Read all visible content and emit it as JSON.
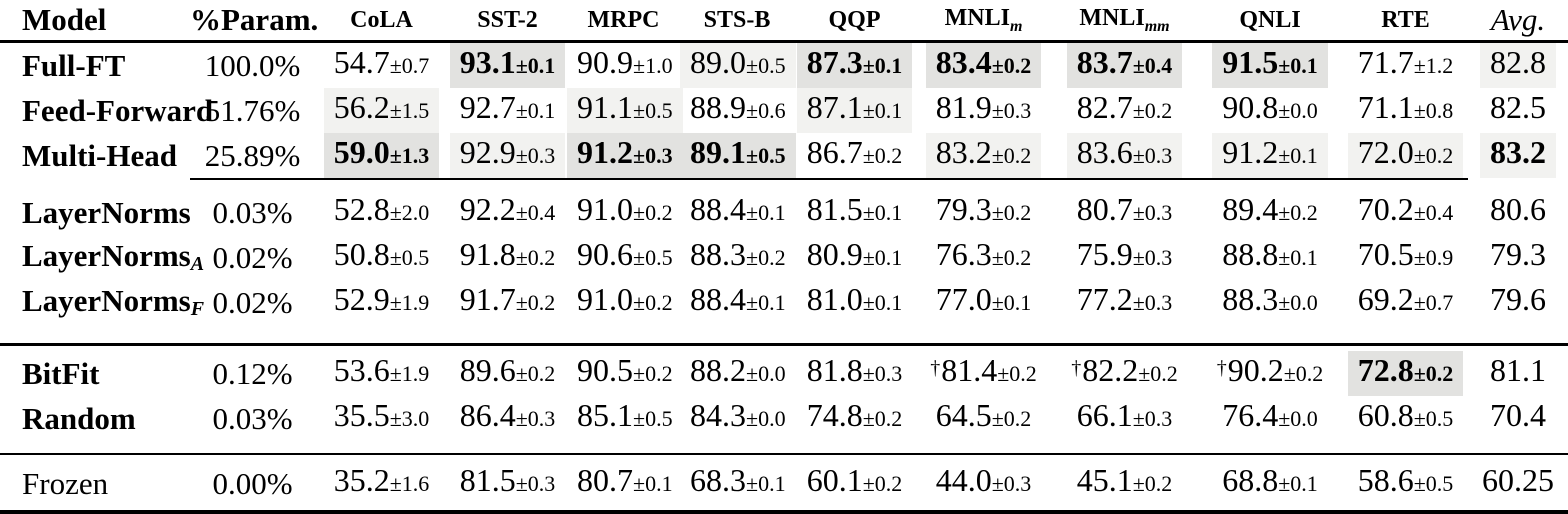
{
  "colors": {
    "background": "#ffffff",
    "text": "#000000",
    "rule": "#000000",
    "highlight_light": "#f2f2f0",
    "highlight_strong": "#e2e2e0"
  },
  "table": {
    "column_keys": [
      "cola",
      "sst2",
      "mrpc",
      "stsb",
      "qqp",
      "mnli_m",
      "mnli_mm",
      "qnli",
      "rte",
      "avg"
    ],
    "header": [
      {
        "label": "Model",
        "kind": "model"
      },
      {
        "label": "%Param.",
        "kind": "param"
      },
      {
        "label": "CoLA",
        "kind": "task"
      },
      {
        "label": "SST-2",
        "kind": "task"
      },
      {
        "label": "MRPC",
        "kind": "task"
      },
      {
        "label": "STS-B",
        "kind": "task"
      },
      {
        "label": "QQP",
        "kind": "task"
      },
      {
        "label": "MNLI",
        "sub": "m",
        "kind": "task"
      },
      {
        "label": "MNLI",
        "sub": "mm",
        "kind": "task"
      },
      {
        "label": "QNLI",
        "kind": "task"
      },
      {
        "label": "RTE",
        "kind": "task"
      },
      {
        "label": "Avg.",
        "kind": "avg"
      }
    ],
    "groups": [
      {
        "rows": [
          {
            "model": "Full-FT",
            "model_bold": true,
            "param": "100.0%",
            "cells": [
              {
                "v": "54.7",
                "sd": "±0.7"
              },
              {
                "v": "93.1",
                "sd": "±0.1",
                "b": 1,
                "hl": 2
              },
              {
                "v": "90.9",
                "sd": "±1.0"
              },
              {
                "v": "89.0",
                "sd": "±0.5",
                "hl": 1
              },
              {
                "v": "87.3",
                "sd": "±0.1",
                "b": 1,
                "hl": 2
              },
              {
                "v": "83.4",
                "sd": "±0.2",
                "b": 1,
                "hl": 2
              },
              {
                "v": "83.7",
                "sd": "±0.4",
                "b": 1,
                "hl": 2
              },
              {
                "v": "91.5",
                "sd": "±0.1",
                "b": 1,
                "hl": 2
              },
              {
                "v": "71.7",
                "sd": "±1.2"
              },
              {
                "v": "82.8",
                "hl": 1
              }
            ]
          },
          {
            "model": "Feed-Forward",
            "model_bold": true,
            "param": "51.76%",
            "cells": [
              {
                "v": "56.2",
                "sd": "±1.5",
                "hl": 1
              },
              {
                "v": "92.7",
                "sd": "±0.1"
              },
              {
                "v": "91.1",
                "sd": "±0.5",
                "hl": 1
              },
              {
                "v": "88.9",
                "sd": "±0.6"
              },
              {
                "v": "87.1",
                "sd": "±0.1",
                "hl": 1
              },
              {
                "v": "81.9",
                "sd": "±0.3"
              },
              {
                "v": "82.7",
                "sd": "±0.2"
              },
              {
                "v": "90.8",
                "sd": "±0.0"
              },
              {
                "v": "71.1",
                "sd": "±0.8"
              },
              {
                "v": "82.5"
              }
            ]
          },
          {
            "model": "Multi-Head",
            "model_bold": true,
            "param": "25.89%",
            "cells": [
              {
                "v": "59.0",
                "sd": "±1.3",
                "b": 1,
                "hl": 2
              },
              {
                "v": "92.9",
                "sd": "±0.3",
                "hl": 1
              },
              {
                "v": "91.2",
                "sd": "±0.3",
                "b": 1,
                "hl": 2
              },
              {
                "v": "89.1",
                "sd": "±0.5",
                "b": 1,
                "hl": 2
              },
              {
                "v": "86.7",
                "sd": "±0.2"
              },
              {
                "v": "83.2",
                "sd": "±0.2",
                "hl": 1
              },
              {
                "v": "83.6",
                "sd": "±0.3",
                "hl": 1
              },
              {
                "v": "91.2",
                "sd": "±0.1",
                "hl": 1
              },
              {
                "v": "72.0",
                "sd": "±0.2",
                "hl": 1
              },
              {
                "v": "83.2",
                "b": 1,
                "hl": 1
              }
            ]
          }
        ]
      },
      {
        "rows": [
          {
            "model": "LayerNorms",
            "model_bold": true,
            "param": "0.03%",
            "cells": [
              {
                "v": "52.8",
                "sd": "±2.0"
              },
              {
                "v": "92.2",
                "sd": "±0.4"
              },
              {
                "v": "91.0",
                "sd": "±0.2"
              },
              {
                "v": "88.4",
                "sd": "±0.1"
              },
              {
                "v": "81.5",
                "sd": "±0.1"
              },
              {
                "v": "79.3",
                "sd": "±0.2"
              },
              {
                "v": "80.7",
                "sd": "±0.3"
              },
              {
                "v": "89.4",
                "sd": "±0.2"
              },
              {
                "v": "70.2",
                "sd": "±0.4"
              },
              {
                "v": "80.6"
              }
            ]
          },
          {
            "model": "LayerNorms",
            "model_sub": "A",
            "model_bold": true,
            "param": "0.02%",
            "cells": [
              {
                "v": "50.8",
                "sd": "±0.5"
              },
              {
                "v": "91.8",
                "sd": "±0.2"
              },
              {
                "v": "90.6",
                "sd": "±0.5"
              },
              {
                "v": "88.3",
                "sd": "±0.2"
              },
              {
                "v": "80.9",
                "sd": "±0.1"
              },
              {
                "v": "76.3",
                "sd": "±0.2"
              },
              {
                "v": "75.9",
                "sd": "±0.3"
              },
              {
                "v": "88.8",
                "sd": "±0.1"
              },
              {
                "v": "70.5",
                "sd": "±0.9"
              },
              {
                "v": "79.3"
              }
            ]
          },
          {
            "model": "LayerNorms",
            "model_sub": "F",
            "model_bold": true,
            "param": "0.02%",
            "cells": [
              {
                "v": "52.9",
                "sd": "±1.9"
              },
              {
                "v": "91.7",
                "sd": "±0.2"
              },
              {
                "v": "91.0",
                "sd": "±0.2"
              },
              {
                "v": "88.4",
                "sd": "±0.1"
              },
              {
                "v": "81.0",
                "sd": "±0.1"
              },
              {
                "v": "77.0",
                "sd": "±0.1"
              },
              {
                "v": "77.2",
                "sd": "±0.3"
              },
              {
                "v": "88.3",
                "sd": "±0.0"
              },
              {
                "v": "69.2",
                "sd": "±0.7"
              },
              {
                "v": "79.6"
              }
            ]
          }
        ]
      },
      {
        "rows": [
          {
            "model": "BitFit",
            "model_bold": true,
            "param": "0.12%",
            "cells": [
              {
                "v": "53.6",
                "sd": "±1.9"
              },
              {
                "v": "89.6",
                "sd": "±0.2"
              },
              {
                "v": "90.5",
                "sd": "±0.2"
              },
              {
                "v": "88.2",
                "sd": "±0.0"
              },
              {
                "v": "81.8",
                "sd": "±0.3"
              },
              {
                "v": "81.4",
                "sd": "±0.2",
                "dg": "†"
              },
              {
                "v": "82.2",
                "sd": "±0.2",
                "dg": "†"
              },
              {
                "v": "90.2",
                "sd": "±0.2",
                "dg": "†"
              },
              {
                "v": "72.8",
                "sd": "±0.2",
                "b": 1,
                "hl": 2
              },
              {
                "v": "81.1"
              }
            ]
          },
          {
            "model": "Random",
            "model_bold": true,
            "param": "0.03%",
            "cells": [
              {
                "v": "35.5",
                "sd": "±3.0"
              },
              {
                "v": "86.4",
                "sd": "±0.3"
              },
              {
                "v": "85.1",
                "sd": "±0.5"
              },
              {
                "v": "84.3",
                "sd": "±0.0"
              },
              {
                "v": "74.8",
                "sd": "±0.2"
              },
              {
                "v": "64.5",
                "sd": "±0.2"
              },
              {
                "v": "66.1",
                "sd": "±0.3"
              },
              {
                "v": "76.4",
                "sd": "±0.0"
              },
              {
                "v": "60.8",
                "sd": "±0.5"
              },
              {
                "v": "70.4"
              }
            ]
          }
        ]
      },
      {
        "rows": [
          {
            "model": "Frozen",
            "model_bold": false,
            "param": "0.00%",
            "cells": [
              {
                "v": "35.2",
                "sd": "±1.6"
              },
              {
                "v": "81.5",
                "sd": "±0.3"
              },
              {
                "v": "80.7",
                "sd": "±0.1"
              },
              {
                "v": "68.3",
                "sd": "±0.1"
              },
              {
                "v": "60.1",
                "sd": "±0.2"
              },
              {
                "v": "44.0",
                "sd": "±0.3"
              },
              {
                "v": "45.1",
                "sd": "±0.2"
              },
              {
                "v": "68.8",
                "sd": "±0.1"
              },
              {
                "v": "58.6",
                "sd": "±0.5"
              },
              {
                "v": "60.25"
              }
            ]
          }
        ]
      }
    ]
  }
}
